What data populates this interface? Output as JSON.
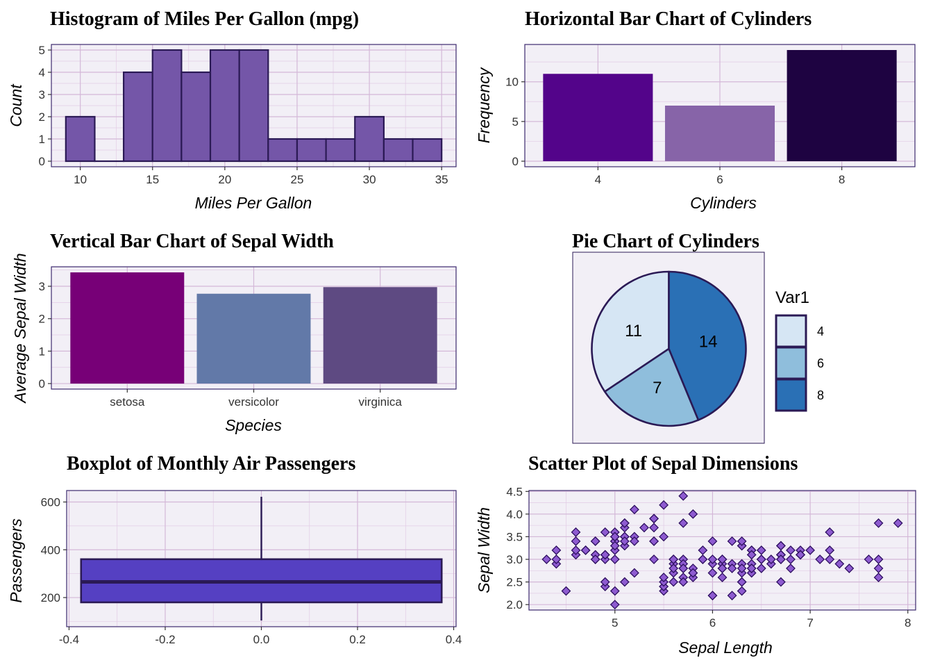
{
  "colors": {
    "panel_bg": "#F2EFF6",
    "panel_border": "#3C2A6E",
    "grid_major": "#D4B8D8",
    "grid_minor": "#E2CCE5",
    "tick_text": "#333333",
    "dark_outline": "#2B1A55"
  },
  "chart_data": [
    {
      "id": "hist",
      "type": "bar",
      "title": "Histogram of Miles Per Gallon (mpg)",
      "xlabel": "Miles Per Gallon",
      "ylabel": "Count",
      "bin_width": 2,
      "bins": [
        {
          "x0": 9,
          "x1": 11,
          "count": 2
        },
        {
          "x0": 11,
          "x1": 13,
          "count": 0
        },
        {
          "x0": 13,
          "x1": 15,
          "count": 4
        },
        {
          "x0": 15,
          "x1": 17,
          "count": 5
        },
        {
          "x0": 17,
          "x1": 19,
          "count": 4
        },
        {
          "x0": 19,
          "x1": 21,
          "count": 5
        },
        {
          "x0": 21,
          "x1": 23,
          "count": 5
        },
        {
          "x0": 23,
          "x1": 25,
          "count": 1
        },
        {
          "x0": 25,
          "x1": 27,
          "count": 1
        },
        {
          "x0": 27,
          "x1": 29,
          "count": 1
        },
        {
          "x0": 29,
          "x1": 31,
          "count": 2
        },
        {
          "x0": 31,
          "x1": 33,
          "count": 1
        },
        {
          "x0": 33,
          "x1": 35,
          "count": 1
        }
      ],
      "xlim": [
        8,
        36
      ],
      "ylim": [
        -0.25,
        5.25
      ],
      "x_ticks": [
        10,
        15,
        20,
        25,
        30,
        35
      ],
      "y_ticks": [
        0,
        1,
        2,
        3,
        4,
        5
      ],
      "fill": "#7456A8",
      "outline": "#2B1A55",
      "grid": true
    },
    {
      "id": "cyl_bar",
      "type": "bar",
      "title": "Horizontal Bar Chart of Cylinders",
      "xlabel": "Cylinders",
      "ylabel": "Frequency",
      "categories": [
        "4",
        "6",
        "8"
      ],
      "values": [
        11,
        7,
        14
      ],
      "colors": [
        "#53048A",
        "#8764A8",
        "#1E0341"
      ],
      "ylim": [
        -0.7,
        14.7
      ],
      "y_ticks": [
        0,
        5,
        10
      ],
      "grid": true
    },
    {
      "id": "sepal_bar",
      "type": "bar",
      "title": "Vertical Bar Chart of Sepal Width",
      "xlabel": "Species",
      "ylabel": "Average Sepal Width",
      "categories": [
        "setosa",
        "versicolor",
        "virginica"
      ],
      "values": [
        3.428,
        2.77,
        2.974
      ],
      "colors": [
        "#770077",
        "#6279A8",
        "#5E4A82"
      ],
      "ylim": [
        -0.17,
        3.6
      ],
      "y_ticks": [
        0,
        1,
        2,
        3
      ],
      "grid": true
    },
    {
      "id": "pie",
      "type": "pie",
      "title": "Pie Chart of Cylinders",
      "labels": [
        "4",
        "6",
        "8"
      ],
      "values": [
        11,
        7,
        14
      ],
      "colors": [
        "#D6E6F4",
        "#8FBEDC",
        "#2A70B5"
      ],
      "legend_title": "Var1",
      "legend": "right"
    },
    {
      "id": "boxplot",
      "type": "boxplot",
      "title": "Boxplot of Monthly Air Passengers",
      "ylabel": "Passengers",
      "stats": {
        "min": 104,
        "q1": 180,
        "median": 265.5,
        "q3": 360.5,
        "max": 622
      },
      "box_x_range": [
        -0.375,
        0.375
      ],
      "xlim": [
        -0.405,
        0.405
      ],
      "ylim": [
        78,
        648
      ],
      "x_ticks": [
        -0.4,
        -0.2,
        0.0,
        0.2,
        0.4
      ],
      "x_tick_labels": [
        "-0.4",
        "-0.2",
        "0.0",
        "0.2",
        "0.4"
      ],
      "y_ticks": [
        200,
        400,
        600
      ],
      "fill": "#5540C2",
      "outline": "#2B1A55",
      "grid": true
    },
    {
      "id": "scatter",
      "type": "scatter",
      "title": "Scatter Plot of Sepal Dimensions",
      "xlabel": "Sepal Length",
      "ylabel": "Sepal Width",
      "xlim": [
        4.12,
        8.08
      ],
      "ylim": [
        1.88,
        4.52
      ],
      "x_ticks": [
        5,
        6,
        7,
        8
      ],
      "y_ticks": [
        2.0,
        2.5,
        3.0,
        3.5,
        4.0,
        4.5
      ],
      "y_tick_labels": [
        "2.0",
        "2.5",
        "3.0",
        "3.5",
        "4.0",
        "4.5"
      ],
      "fill": "#8E5BD0",
      "outline": "#2E1060",
      "grid": true,
      "points": [
        [
          5.1,
          3.5
        ],
        [
          4.9,
          3.0
        ],
        [
          4.7,
          3.2
        ],
        [
          4.6,
          3.1
        ],
        [
          5.0,
          3.6
        ],
        [
          5.4,
          3.9
        ],
        [
          4.6,
          3.4
        ],
        [
          5.0,
          3.4
        ],
        [
          4.4,
          2.9
        ],
        [
          4.9,
          3.1
        ],
        [
          5.4,
          3.7
        ],
        [
          4.8,
          3.4
        ],
        [
          4.8,
          3.0
        ],
        [
          4.3,
          3.0
        ],
        [
          5.8,
          4.0
        ],
        [
          5.7,
          4.4
        ],
        [
          5.4,
          3.9
        ],
        [
          5.1,
          3.5
        ],
        [
          5.7,
          3.8
        ],
        [
          5.1,
          3.8
        ],
        [
          5.4,
          3.4
        ],
        [
          5.1,
          3.7
        ],
        [
          4.6,
          3.6
        ],
        [
          5.1,
          3.3
        ],
        [
          4.8,
          3.4
        ],
        [
          5.0,
          3.0
        ],
        [
          5.0,
          3.4
        ],
        [
          5.2,
          3.5
        ],
        [
          5.2,
          3.4
        ],
        [
          4.7,
          3.2
        ],
        [
          4.8,
          3.1
        ],
        [
          5.4,
          3.4
        ],
        [
          5.2,
          4.1
        ],
        [
          5.5,
          4.2
        ],
        [
          4.9,
          3.1
        ],
        [
          5.0,
          3.2
        ],
        [
          5.5,
          3.5
        ],
        [
          4.9,
          3.6
        ],
        [
          4.4,
          3.0
        ],
        [
          5.1,
          3.4
        ],
        [
          5.0,
          3.5
        ],
        [
          4.5,
          2.3
        ],
        [
          4.4,
          3.2
        ],
        [
          5.0,
          3.5
        ],
        [
          5.1,
          3.8
        ],
        [
          4.8,
          3.0
        ],
        [
          5.1,
          3.8
        ],
        [
          4.6,
          3.2
        ],
        [
          5.3,
          3.7
        ],
        [
          5.0,
          3.3
        ],
        [
          7.0,
          3.2
        ],
        [
          6.4,
          3.2
        ],
        [
          6.9,
          3.1
        ],
        [
          5.5,
          2.3
        ],
        [
          6.5,
          2.8
        ],
        [
          5.7,
          2.8
        ],
        [
          6.3,
          3.3
        ],
        [
          4.9,
          2.4
        ],
        [
          6.6,
          2.9
        ],
        [
          5.2,
          2.7
        ],
        [
          5.0,
          2.0
        ],
        [
          5.9,
          3.0
        ],
        [
          6.0,
          2.2
        ],
        [
          6.1,
          2.9
        ],
        [
          5.6,
          2.9
        ],
        [
          6.7,
          3.1
        ],
        [
          5.6,
          3.0
        ],
        [
          5.8,
          2.7
        ],
        [
          6.2,
          2.2
        ],
        [
          5.6,
          2.5
        ],
        [
          5.9,
          3.2
        ],
        [
          6.1,
          2.8
        ],
        [
          6.3,
          2.5
        ],
        [
          6.1,
          2.8
        ],
        [
          6.4,
          2.9
        ],
        [
          6.6,
          3.0
        ],
        [
          6.8,
          2.8
        ],
        [
          6.7,
          3.0
        ],
        [
          6.0,
          2.9
        ],
        [
          5.7,
          2.6
        ],
        [
          5.5,
          2.4
        ],
        [
          5.5,
          2.4
        ],
        [
          5.8,
          2.7
        ],
        [
          6.0,
          2.7
        ],
        [
          5.4,
          3.0
        ],
        [
          6.0,
          3.4
        ],
        [
          6.7,
          3.1
        ],
        [
          6.3,
          2.3
        ],
        [
          5.6,
          3.0
        ],
        [
          5.5,
          2.5
        ],
        [
          5.5,
          2.6
        ],
        [
          6.1,
          3.0
        ],
        [
          5.8,
          2.6
        ],
        [
          5.0,
          2.3
        ],
        [
          5.6,
          2.7
        ],
        [
          5.7,
          3.0
        ],
        [
          5.7,
          2.9
        ],
        [
          6.2,
          2.9
        ],
        [
          5.1,
          2.5
        ],
        [
          5.7,
          2.8
        ],
        [
          6.3,
          3.3
        ],
        [
          5.8,
          2.7
        ],
        [
          7.1,
          3.0
        ],
        [
          6.3,
          2.9
        ],
        [
          6.5,
          3.0
        ],
        [
          7.6,
          3.0
        ],
        [
          4.9,
          2.5
        ],
        [
          7.3,
          2.9
        ],
        [
          6.7,
          2.5
        ],
        [
          7.2,
          3.6
        ],
        [
          6.5,
          3.2
        ],
        [
          6.4,
          2.7
        ],
        [
          6.8,
          3.0
        ],
        [
          5.7,
          2.5
        ],
        [
          5.8,
          2.8
        ],
        [
          6.4,
          3.2
        ],
        [
          6.5,
          3.0
        ],
        [
          7.7,
          3.8
        ],
        [
          7.7,
          2.6
        ],
        [
          6.0,
          2.2
        ],
        [
          6.9,
          3.2
        ],
        [
          5.6,
          2.8
        ],
        [
          7.7,
          2.8
        ],
        [
          6.3,
          2.7
        ],
        [
          6.7,
          3.3
        ],
        [
          7.2,
          3.2
        ],
        [
          6.2,
          2.8
        ],
        [
          6.1,
          3.0
        ],
        [
          6.4,
          2.8
        ],
        [
          7.2,
          3.0
        ],
        [
          7.4,
          2.8
        ],
        [
          7.9,
          3.8
        ],
        [
          6.4,
          2.8
        ],
        [
          6.3,
          2.8
        ],
        [
          6.1,
          2.6
        ],
        [
          7.7,
          3.0
        ],
        [
          6.3,
          3.4
        ],
        [
          6.4,
          3.1
        ],
        [
          6.0,
          3.0
        ],
        [
          6.9,
          3.1
        ],
        [
          6.7,
          3.1
        ],
        [
          6.9,
          3.1
        ],
        [
          5.8,
          2.7
        ],
        [
          6.8,
          3.2
        ],
        [
          6.7,
          3.3
        ],
        [
          6.7,
          3.0
        ],
        [
          6.3,
          2.5
        ],
        [
          6.5,
          3.0
        ],
        [
          6.2,
          3.4
        ],
        [
          5.9,
          3.0
        ]
      ]
    }
  ]
}
